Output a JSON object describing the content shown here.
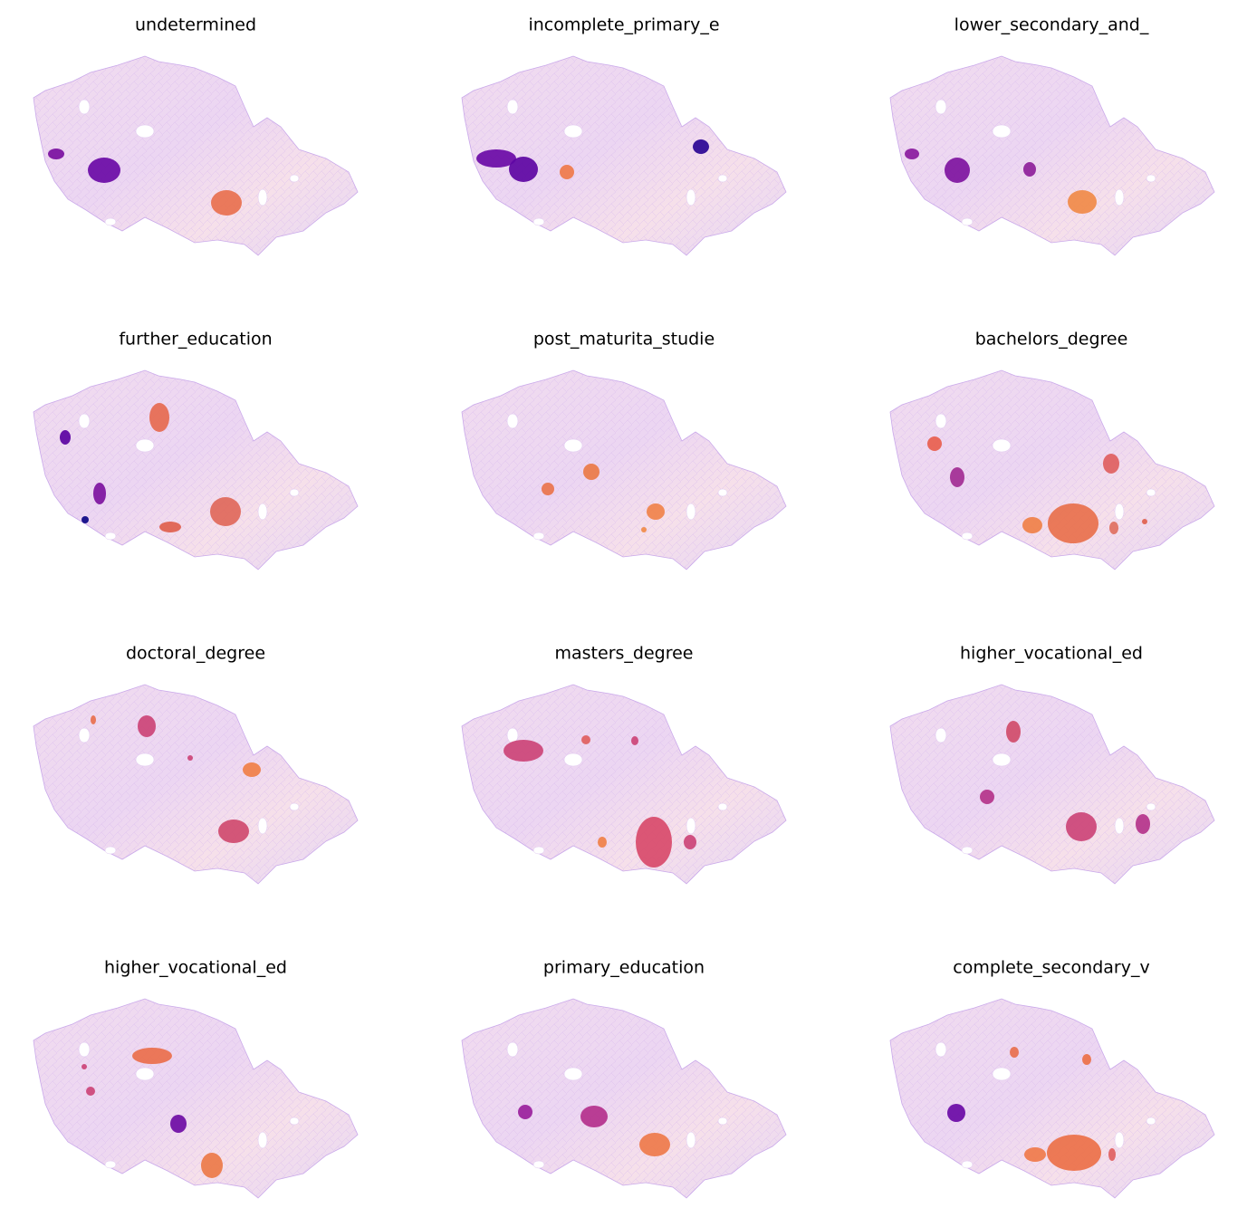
{
  "panels": [
    {
      "title": "undetermined"
    },
    {
      "title": "incomplete_primary_e"
    },
    {
      "title": "lower_secondary_and_"
    },
    {
      "title": "further_education"
    },
    {
      "title": "post_maturita_studie"
    },
    {
      "title": "bachelors_degree"
    },
    {
      "title": "doctoral_degree"
    },
    {
      "title": "masters_degree"
    },
    {
      "title": "higher_vocational_ed"
    },
    {
      "title": "higher_vocational_ed"
    },
    {
      "title": "primary_education"
    },
    {
      "title": "complete_secondary_v"
    }
  ]
}
